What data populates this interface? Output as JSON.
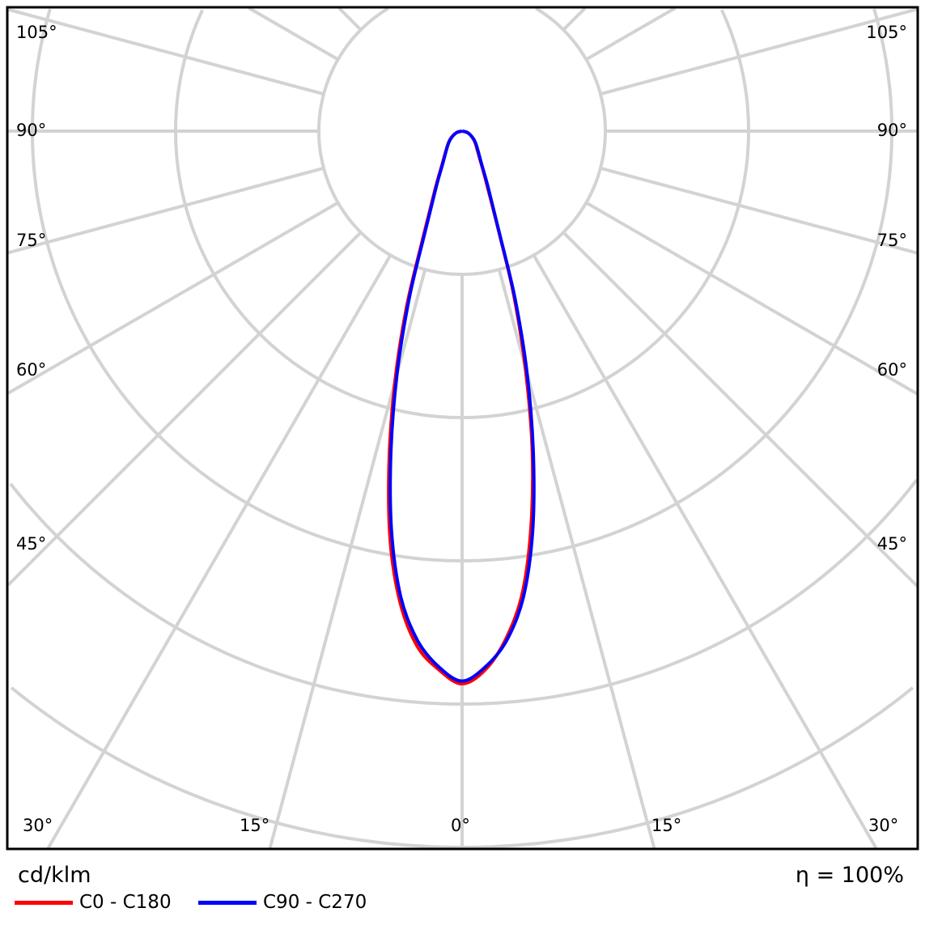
{
  "chart_data": {
    "type": "polar",
    "unit_label": "cd/klm",
    "efficiency_label": "η = 100%",
    "angle_labels": {
      "left": [
        "105°",
        "90°",
        "75°",
        "60°",
        "45°"
      ],
      "right": [
        "105°",
        "90°",
        "75°",
        "60°",
        "45°"
      ],
      "bottom": [
        "30°",
        "15°",
        "0°",
        "15°",
        "30°"
      ]
    },
    "angular_grid_step_deg": 15,
    "radial_rings": 5,
    "radial_scale": "relative intensity (max = 1)",
    "gamma_deg": [
      0,
      2.5,
      5,
      7.5,
      10,
      12.5,
      15,
      17.5,
      20,
      25,
      30,
      40,
      50,
      60,
      75,
      90
    ],
    "series": [
      {
        "name": "C0 - C180",
        "color": "#ff0000",
        "left": [
          1.0,
          0.975,
          0.935,
          0.86,
          0.75,
          0.61,
          0.47,
          0.335,
          0.21,
          0.115,
          0.075,
          0.045,
          0.032,
          0.022,
          0.01,
          0.0
        ],
        "right": [
          1.0,
          0.975,
          0.92,
          0.84,
          0.72,
          0.585,
          0.44,
          0.31,
          0.195,
          0.105,
          0.07,
          0.042,
          0.03,
          0.02,
          0.01,
          0.0
        ]
      },
      {
        "name": "C90 - C270",
        "color": "#0000ff",
        "left": [
          0.995,
          0.97,
          0.925,
          0.85,
          0.735,
          0.595,
          0.455,
          0.32,
          0.2,
          0.11,
          0.072,
          0.044,
          0.031,
          0.021,
          0.01,
          0.0
        ],
        "right": [
          0.995,
          0.97,
          0.925,
          0.85,
          0.735,
          0.595,
          0.455,
          0.32,
          0.2,
          0.11,
          0.072,
          0.044,
          0.031,
          0.021,
          0.01,
          0.0
        ]
      }
    ]
  }
}
